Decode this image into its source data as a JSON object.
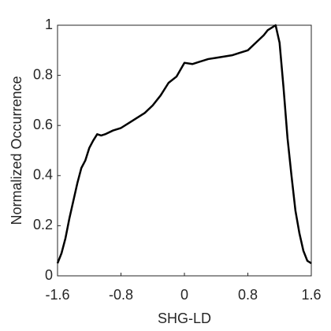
{
  "chart_data": {
    "type": "line",
    "x_label": "SHG-LD",
    "y_label": "Normalized Occurrence",
    "x": [
      -1.6,
      -1.55,
      -1.5,
      -1.45,
      -1.4,
      -1.35,
      -1.3,
      -1.25,
      -1.2,
      -1.15,
      -1.1,
      -1.05,
      -1.0,
      -0.9,
      -0.8,
      -0.7,
      -0.6,
      -0.5,
      -0.4,
      -0.3,
      -0.2,
      -0.1,
      0,
      0.1,
      0.2,
      0.3,
      0.4,
      0.5,
      0.6,
      0.7,
      0.8,
      0.9,
      1.0,
      1.05,
      1.1,
      1.15,
      1.2,
      1.25,
      1.3,
      1.35,
      1.4,
      1.45,
      1.5,
      1.55,
      1.6
    ],
    "series": [
      {
        "color": "#000000",
        "values": [
          0.05,
          0.09,
          0.15,
          0.23,
          0.3,
          0.37,
          0.43,
          0.46,
          0.51,
          0.54,
          0.565,
          0.56,
          0.565,
          0.58,
          0.59,
          0.61,
          0.63,
          0.65,
          0.68,
          0.72,
          0.77,
          0.795,
          0.85,
          0.845,
          0.855,
          0.865,
          0.87,
          0.875,
          0.88,
          0.89,
          0.9,
          0.93,
          0.96,
          0.98,
          0.99,
          1.0,
          0.93,
          0.75,
          0.55,
          0.4,
          0.26,
          0.17,
          0.1,
          0.06,
          0.05
        ]
      }
    ],
    "xlim": [
      -1.6,
      1.6
    ],
    "xticks": [
      -1.6,
      -0.8,
      0,
      0.8,
      1.6
    ],
    "ylim": [
      0,
      1
    ],
    "yticks": [
      0,
      0.2,
      0.4,
      0.6,
      0.8,
      1
    ]
  }
}
